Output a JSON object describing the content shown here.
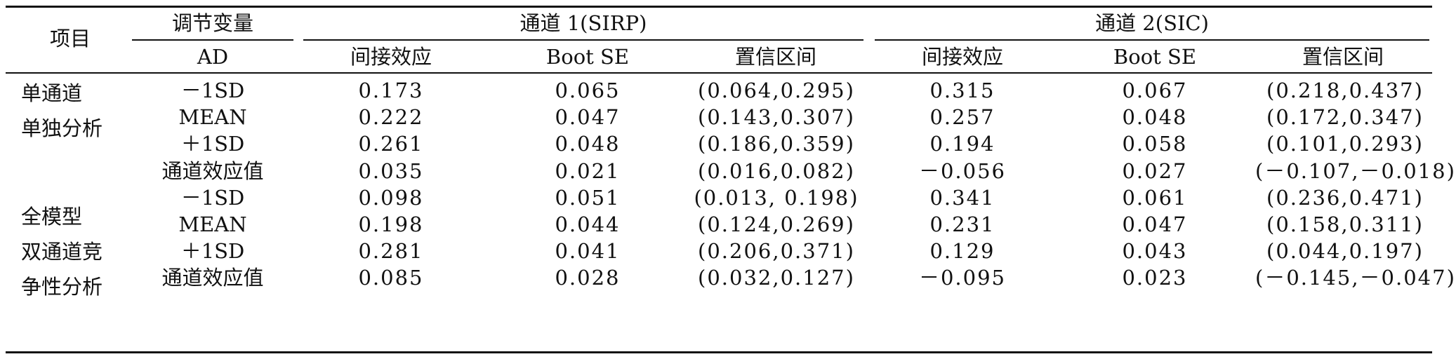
{
  "table": {
    "header": {
      "item": "项目",
      "moderator": "调节变量",
      "channel1": "通道 1(SIRP)",
      "channel2": "通道 2(SIC)",
      "ad": "AD",
      "indirect": "间接效应",
      "boot_se": "Boot SE",
      "ci": "置信区间"
    },
    "groups": [
      {
        "lines": [
          "单通道",
          "单独分析"
        ]
      },
      {
        "lines": [
          "全模型",
          "双通道竞",
          "争性分析"
        ]
      }
    ],
    "rows": [
      [
        "－1SD",
        "0.173",
        "0.065",
        "(0.064,0.295)",
        "0.315",
        "0.067",
        "(0.218,0.437)"
      ],
      [
        "MEAN",
        "0.222",
        "0.047",
        "(0.143,0.307)",
        "0.257",
        "0.048",
        "(0.172,0.347)"
      ],
      [
        "＋1SD",
        "0.261",
        "0.048",
        "(0.186,0.359)",
        "0.194",
        "0.058",
        "(0.101,0.293)"
      ],
      [
        "通道效应值",
        "0.035",
        "0.021",
        "(0.016,0.082)",
        "－0.056",
        "0.027",
        "(－0.107,－0.018)"
      ],
      [
        "－1SD",
        "0.098",
        "0.051",
        "(0.013, 0.198)",
        "0.341",
        "0.061",
        "(0.236,0.471)"
      ],
      [
        "MEAN",
        "0.198",
        "0.044",
        "(0.124,0.269)",
        "0.231",
        "0.047",
        "(0.158,0.311)"
      ],
      [
        "＋1SD",
        "0.281",
        "0.041",
        "(0.206,0.371)",
        "0.129",
        "0.043",
        "(0.044,0.197)"
      ],
      [
        "通道效应值",
        "0.085",
        "0.028",
        "(0.032,0.127)",
        "－0.095",
        "0.023",
        "(－0.145,－0.047)"
      ]
    ]
  }
}
